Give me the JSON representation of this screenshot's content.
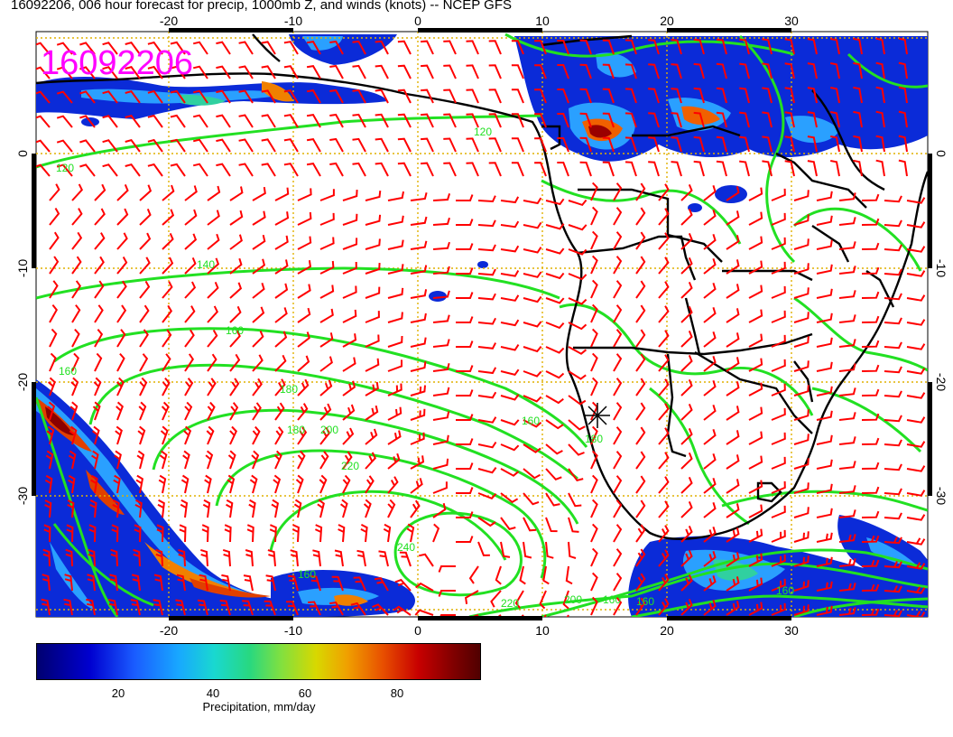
{
  "title": "16092206, 006 hour forecast for precip, 1000mb Z, and winds (knots) -- NCEP GFS",
  "stamp": "16092206",
  "lon_ticks": [
    "-20",
    "-10",
    "0",
    "10",
    "20",
    "30"
  ],
  "lat_ticks": [
    "0",
    "-10",
    "-20",
    "-30"
  ],
  "contour_labels": [
    "120",
    "120",
    "140",
    "160",
    "160",
    "180",
    "180",
    "200",
    "220",
    "240",
    "160",
    "180",
    "200",
    "220",
    "160",
    "160",
    "160",
    "160"
  ],
  "colorbar": {
    "ticks": [
      "20",
      "40",
      "60",
      "80"
    ],
    "title": "Precipitation, mm/day"
  },
  "colors": {
    "contour": "#22e022",
    "wind_barb": "#ff0000",
    "stamp": "#ff00ff",
    "grid": "#e0b000",
    "coast": "#000000"
  }
}
